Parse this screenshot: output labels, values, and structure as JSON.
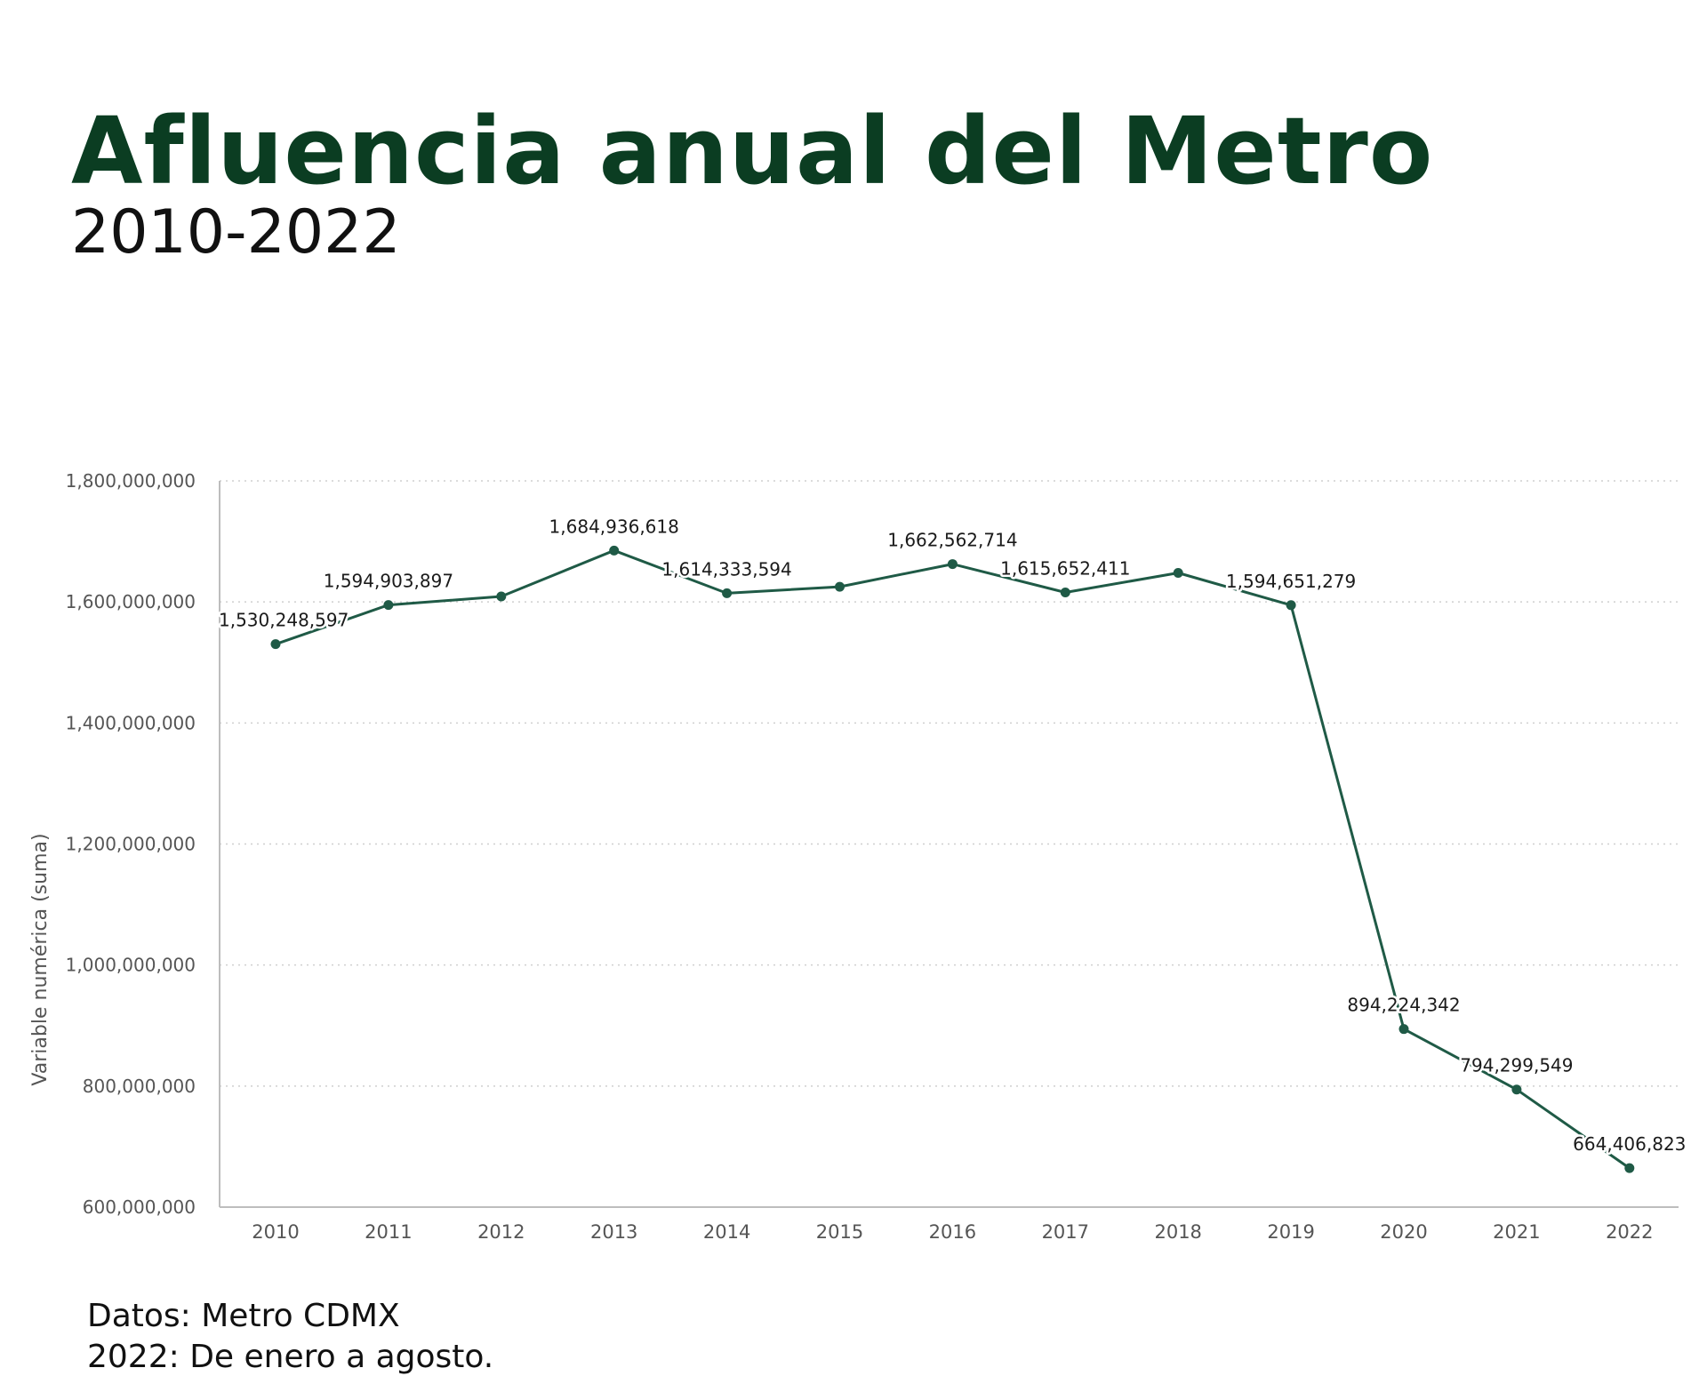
{
  "header": {
    "title": "Afluencia anual del Metro",
    "subtitle": "2010-2022"
  },
  "footer": {
    "source": "Datos: Metro CDMX",
    "note": "2022: De enero a agosto."
  },
  "colors": {
    "title": "#0b3d22",
    "series": "#1f5a46",
    "axis": "#bdbdbd",
    "grid": "#cfcfcf",
    "tick_text": "#555555",
    "label_text": "#1a1a1a"
  },
  "chart_data": {
    "type": "line",
    "ylabel": "Variable numérica (suma)",
    "xlabel": "",
    "ylim": [
      600000000,
      1800000000
    ],
    "yticks": [
      600000000,
      800000000,
      1000000000,
      1200000000,
      1400000000,
      1600000000,
      1800000000
    ],
    "ytick_labels": [
      "600,000,000",
      "800,000,000",
      "1,000,000,000",
      "1,200,000,000",
      "1,400,000,000",
      "1,600,000,000",
      "1,800,000,000"
    ],
    "grid": true,
    "categories": [
      "2010",
      "2011",
      "2012",
      "2013",
      "2014",
      "2015",
      "2016",
      "2017",
      "2018",
      "2019",
      "2020",
      "2021",
      "2022"
    ],
    "series": [
      {
        "values": [
          1530248597,
          1594903897,
          1609000000,
          1684936618,
          1614333594,
          1625000000,
          1662562714,
          1615652411,
          1648000000,
          1594651279,
          894224342,
          794299549,
          664406823
        ],
        "data_labels": [
          "1,530,248,597",
          "1,594,903,897",
          "",
          "1,684,936,618",
          "1,614,333,594",
          "",
          "1,662,562,714",
          "1,615,652,411",
          "",
          "1,594,651,279",
          "894,224,342",
          "794,299,549",
          "664,406,823"
        ]
      }
    ]
  }
}
